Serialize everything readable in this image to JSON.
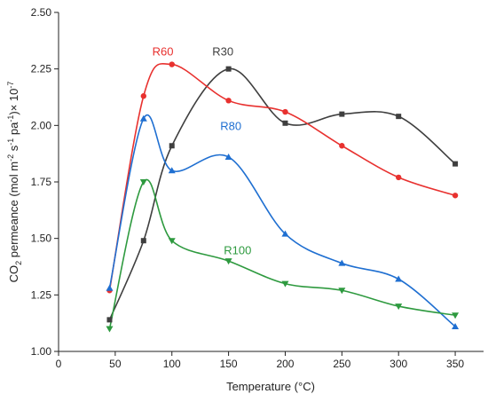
{
  "chart_data": {
    "type": "line",
    "xlabel": "Temperature (°C)",
    "ylabel": "CO2 permeance (mol m-2 s-1 pa-1)× 10-7",
    "ylabel_parts": {
      "a": "CO",
      "sub2": "2",
      "b": " permeance (mol m",
      "sup1": "-2",
      "c": " s",
      "sup2": "-1",
      "d": " pa",
      "sup3": "-1",
      "e": ")× 10",
      "sup4": "-7"
    },
    "xlim": [
      0,
      375
    ],
    "ylim": [
      1.0,
      2.5
    ],
    "xticks": [
      "0",
      "50",
      "100",
      "150",
      "200",
      "250",
      "300",
      "350"
    ],
    "xtick_values": [
      0,
      50,
      100,
      150,
      200,
      250,
      300,
      350
    ],
    "yticks": [
      "1.00",
      "1.25",
      "1.50",
      "1.75",
      "2.00",
      "2.25",
      "2.50"
    ],
    "ytick_values": [
      1.0,
      1.25,
      1.5,
      1.75,
      2.0,
      2.25,
      2.5
    ],
    "series": [
      {
        "name": "R30",
        "color": "#3f3f3f",
        "marker": "square",
        "x": [
          45,
          75,
          100,
          150,
          200,
          250,
          300,
          350
        ],
        "y": [
          1.14,
          1.49,
          1.91,
          2.25,
          2.01,
          2.05,
          2.04,
          1.83
        ]
      },
      {
        "name": "R60",
        "color": "#e8312f",
        "marker": "circle",
        "x": [
          45,
          75,
          100,
          150,
          200,
          250,
          300,
          350
        ],
        "y": [
          1.27,
          2.13,
          2.27,
          2.11,
          2.06,
          1.91,
          1.77,
          1.69
        ]
      },
      {
        "name": "R80",
        "color": "#1f6fd1",
        "marker": "triangle-up",
        "x": [
          45,
          75,
          100,
          150,
          200,
          250,
          300,
          350
        ],
        "y": [
          1.28,
          2.03,
          1.8,
          1.86,
          1.52,
          1.39,
          1.32,
          1.11
        ]
      },
      {
        "name": "R100",
        "color": "#2e9a3f",
        "marker": "triangle-down",
        "x": [
          45,
          75,
          100,
          150,
          200,
          250,
          300,
          350
        ],
        "y": [
          1.1,
          1.75,
          1.49,
          1.4,
          1.3,
          1.27,
          1.2,
          1.16
        ]
      }
    ],
    "grid": false,
    "legend": "none"
  }
}
